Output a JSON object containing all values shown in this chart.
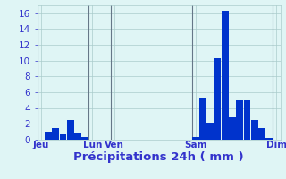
{
  "bar_values": [
    0,
    1.0,
    1.5,
    0.7,
    2.5,
    0.8,
    0.3,
    0,
    0,
    0,
    0,
    0,
    0,
    0,
    0,
    0,
    0,
    0,
    0,
    0,
    0,
    0.3,
    5.3,
    2.2,
    10.3,
    16.3,
    2.8,
    5.0,
    5.0,
    2.5,
    1.5,
    0.2,
    0
  ],
  "n_bars": 33,
  "ylim": [
    0,
    17
  ],
  "yticks": [
    0,
    2,
    4,
    6,
    8,
    10,
    12,
    14,
    16
  ],
  "xlabel": "Précipitations 24h ( mm )",
  "bar_color": "#0033cc",
  "bg_color": "#dff5f5",
  "grid_color": "#aacccc",
  "text_color": "#3333cc",
  "day_line_color": "#667788",
  "tick_positions": [
    0,
    7,
    10,
    21,
    32
  ],
  "tick_labels_list": [
    "Jeu",
    "Lun",
    "Ven",
    "Sam",
    "Dim"
  ],
  "xlabel_fontsize": 9.5,
  "tick_fontsize": 7.5
}
